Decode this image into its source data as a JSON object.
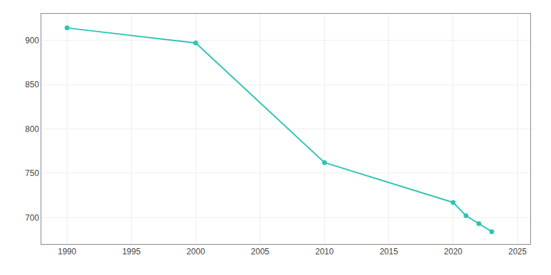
{
  "chart_data": {
    "type": "line",
    "x": [
      1990,
      2000,
      2010,
      2020,
      2021,
      2022,
      2023
    ],
    "values": [
      914,
      897,
      762,
      717,
      702,
      693,
      684
    ],
    "color": "#2ec4b6",
    "marker": "circle",
    "xlim": [
      1988,
      2026
    ],
    "xticks": [
      1990,
      1995,
      2000,
      2005,
      2010,
      2015,
      2020,
      2025
    ],
    "ylim": [
      670,
      930
    ],
    "yticks": [
      700,
      750,
      800,
      850,
      900
    ],
    "grid": true
  }
}
